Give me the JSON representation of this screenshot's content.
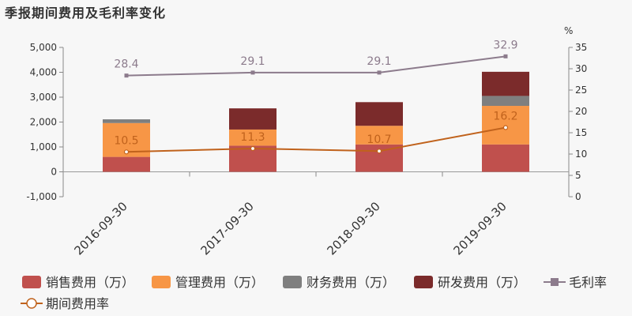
{
  "title": "季报期间费用及毛利率变化",
  "chart_data": {
    "type": "bar",
    "categories": [
      "2016-09-30",
      "2017-09-30",
      "2018-09-30",
      "2019-09-30"
    ],
    "left_axis": {
      "min": -1000,
      "max": 5000,
      "ticks": [
        "-1,000",
        "0",
        "1,000",
        "2,000",
        "3,000",
        "4,000",
        "5,000"
      ],
      "tick_values": [
        -1000,
        0,
        1000,
        2000,
        3000,
        4000,
        5000
      ]
    },
    "right_axis": {
      "label": "%",
      "min": 0,
      "max": 35,
      "ticks": [
        "0",
        "5",
        "10",
        "15",
        "20",
        "25",
        "30",
        "35"
      ],
      "tick_values": [
        0,
        5,
        10,
        15,
        20,
        25,
        30,
        35
      ]
    },
    "stacked_bars": [
      {
        "name": "销售费用（万）",
        "color": "#c0504d",
        "values": [
          600,
          1050,
          1100,
          1100
        ]
      },
      {
        "name": "管理费用（万）",
        "color": "#f79646",
        "values": [
          1360,
          650,
          750,
          1550
        ]
      },
      {
        "name": "财务费用（万）",
        "color": "#7f7f7f",
        "values": [
          150,
          0,
          0,
          400
        ]
      },
      {
        "name": "研发费用（万）",
        "color": "#7b2b2b",
        "values": [
          0,
          850,
          950,
          970
        ]
      }
    ],
    "lines": [
      {
        "name": "毛利率",
        "color": "#8c7b8c",
        "marker": "square",
        "axis": "right",
        "values": [
          28.4,
          29.1,
          29.1,
          32.9
        ],
        "labels": [
          "28.4",
          "29.1",
          "29.1",
          "32.9"
        ],
        "label_color": "#8c7b8c"
      },
      {
        "name": "期间费用率",
        "color": "#c0621c",
        "marker": "circle",
        "axis": "right",
        "values": [
          10.5,
          11.3,
          10.7,
          16.2
        ],
        "labels": [
          "10.5",
          "11.3",
          "10.7",
          "16.2"
        ],
        "label_color": "#c0621c"
      }
    ],
    "legend": [
      {
        "name": "销售费用（万）",
        "kind": "box",
        "color": "#c0504d"
      },
      {
        "name": "管理费用（万）",
        "kind": "box",
        "color": "#f79646"
      },
      {
        "name": "财务费用（万）",
        "kind": "box",
        "color": "#7f7f7f"
      },
      {
        "name": "研发费用（万）",
        "kind": "box",
        "color": "#7b2b2b"
      },
      {
        "name": "毛利率",
        "kind": "line-square",
        "color": "#8c7b8c"
      },
      {
        "name": "期间费用率",
        "kind": "line-circle",
        "color": "#c0621c"
      }
    ],
    "legend_position": "bottom"
  }
}
